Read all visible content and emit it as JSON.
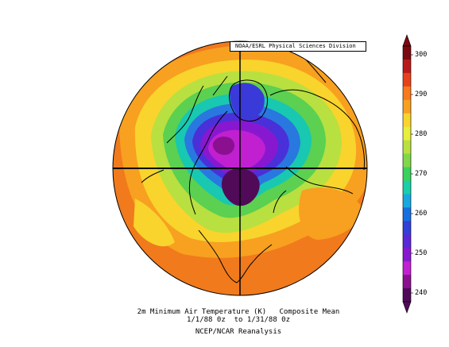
{
  "map": {
    "projection": "north polar stereographic",
    "credit": "NOAA/ESRL Physical Sciences Division",
    "caption": {
      "line1": "2m Minimum Air Temperature (K)   Composite Mean",
      "line2": "1/1/88 0z  to 1/31/88 0z",
      "line3": "NCEP/NCAR Reanalysis"
    }
  },
  "colorbar": {
    "ticks": [
      "300",
      "290",
      "280",
      "270",
      "260",
      "250",
      "240"
    ],
    "colors": [
      "#7a0a10",
      "#b81a1a",
      "#e8411a",
      "#f87a1c",
      "#f8a020",
      "#f8d42c",
      "#e8ee3c",
      "#b8e040",
      "#80d848",
      "#3cd05c",
      "#18d0a8",
      "#18a8e0",
      "#1870e0",
      "#3040d8",
      "#5a28d8",
      "#8818d0",
      "#c020d0",
      "#8a1090",
      "#500a58"
    ]
  },
  "colors": {
    "warm": "#f07a20",
    "mid": "#8ad848",
    "cold": "#6a18c8",
    "coastline": "#000000"
  }
}
